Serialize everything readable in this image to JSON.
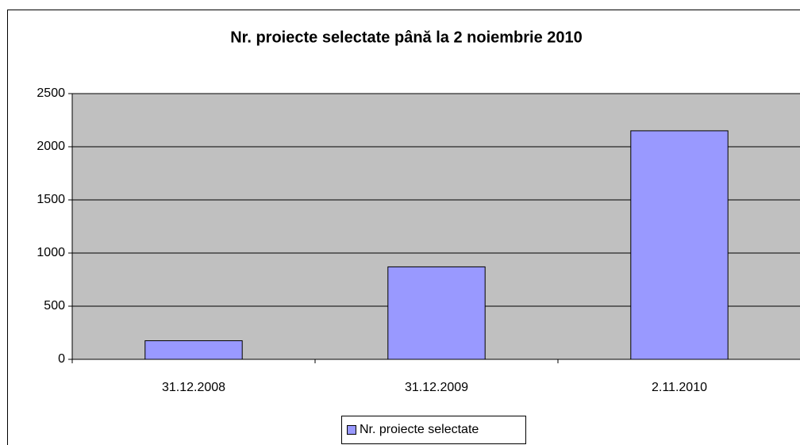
{
  "chart_data": {
    "type": "bar",
    "title": "Nr. proiecte selectate până la 2 noiembrie 2010",
    "categories": [
      "31.12.2008",
      "31.12.2009",
      "2.11.2010"
    ],
    "series": [
      {
        "name": "Nr. proiecte selectate",
        "color": "#9999ff",
        "values": [
          175,
          870,
          2150
        ]
      }
    ],
    "ylim": [
      0,
      2500
    ],
    "yticks": [
      0,
      500,
      1000,
      1500,
      2000,
      2500
    ],
    "grid": true,
    "legend": "bottom"
  }
}
